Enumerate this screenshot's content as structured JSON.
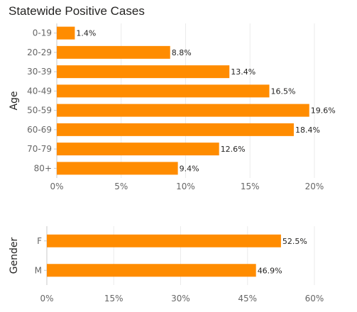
{
  "page": {
    "title": "Statewide Positive Cases"
  },
  "colors": {
    "bar": "#FF8C00",
    "grid": "#ebebeb",
    "axis": "#c8c8c8"
  },
  "chart_data": [
    {
      "type": "bar",
      "orientation": "horizontal",
      "ylabel": "Age",
      "categories": [
        "0-19",
        "20-29",
        "30-39",
        "40-49",
        "50-59",
        "60-69",
        "70-79",
        "80+"
      ],
      "values": [
        1.4,
        8.8,
        13.4,
        16.5,
        19.6,
        18.4,
        12.6,
        9.4
      ],
      "value_labels": [
        "1.4%",
        "8.8%",
        "13.4%",
        "16.5%",
        "19.6%",
        "18.4%",
        "12.6%",
        "9.4%"
      ],
      "xlim": [
        0,
        20
      ],
      "xticks": [
        0,
        5,
        10,
        15,
        20
      ],
      "xtick_labels": [
        "0%",
        "5%",
        "10%",
        "15%",
        "20%"
      ],
      "grid": true
    },
    {
      "type": "bar",
      "orientation": "horizontal",
      "ylabel": "Gender",
      "categories": [
        "F",
        "M"
      ],
      "values": [
        52.5,
        46.9
      ],
      "value_labels": [
        "52.5%",
        "46.9%"
      ],
      "xlim": [
        0,
        60
      ],
      "xticks": [
        0,
        15,
        30,
        45,
        60
      ],
      "xtick_labels": [
        "0%",
        "15%",
        "30%",
        "45%",
        "60%"
      ],
      "grid": true
    }
  ]
}
